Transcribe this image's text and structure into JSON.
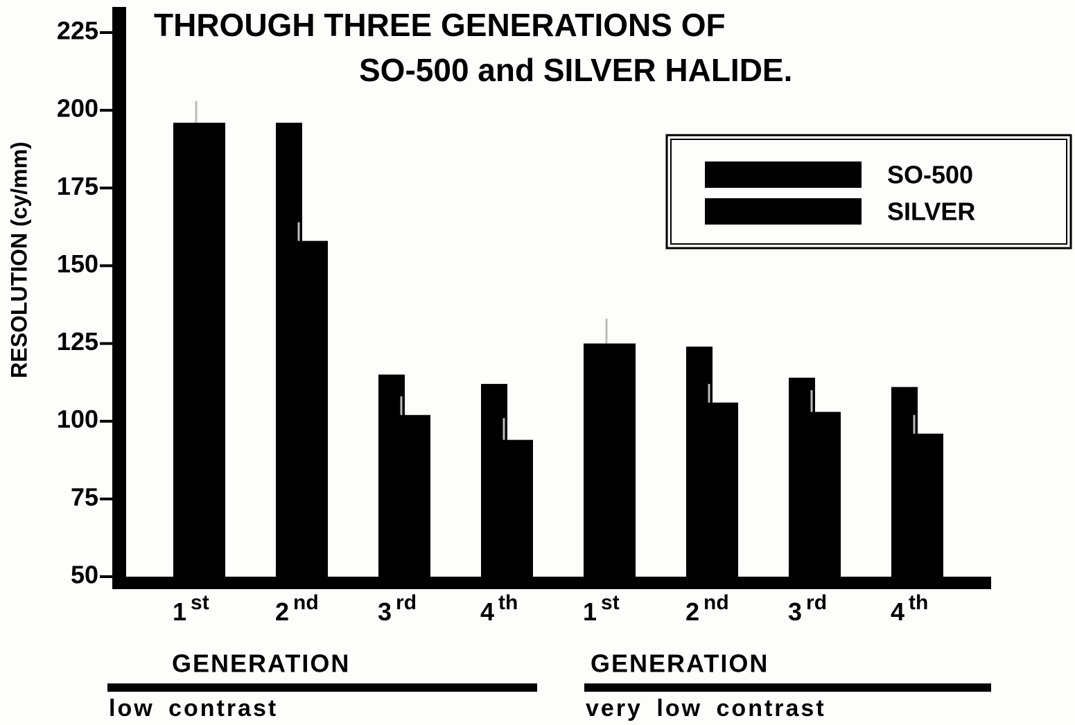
{
  "chart_data": {
    "type": "bar",
    "title": [
      "THROUGH THREE GENERATIONS OF",
      "SO-500 and SILVER HALIDE."
    ],
    "ylabel": "RESOLUTION (cy/mm)",
    "categories": [
      "1st",
      "2nd",
      "3rd",
      "4th",
      "1st",
      "2nd",
      "3rd",
      "4th"
    ],
    "series": [
      {
        "name": "SO-500",
        "color": "#000000",
        "values": [
          196,
          196,
          115,
          112,
          125,
          124,
          114,
          111
        ]
      },
      {
        "name": "SILVER",
        "color": "#000000",
        "values": [
          196,
          158,
          102,
          94,
          125,
          106,
          103,
          96
        ],
        "errors": [
          7,
          6,
          6,
          7,
          8,
          6,
          7,
          6
        ]
      }
    ],
    "groups": [
      {
        "label": "GENERATION",
        "note": "low contrast"
      },
      {
        "label": "GENERATION",
        "note": "very low contrast"
      }
    ],
    "ylim": [
      50,
      225
    ],
    "yticks": [
      50,
      75,
      100,
      125,
      150,
      175,
      200,
      225
    ],
    "grid": false,
    "legend": "upper right"
  }
}
